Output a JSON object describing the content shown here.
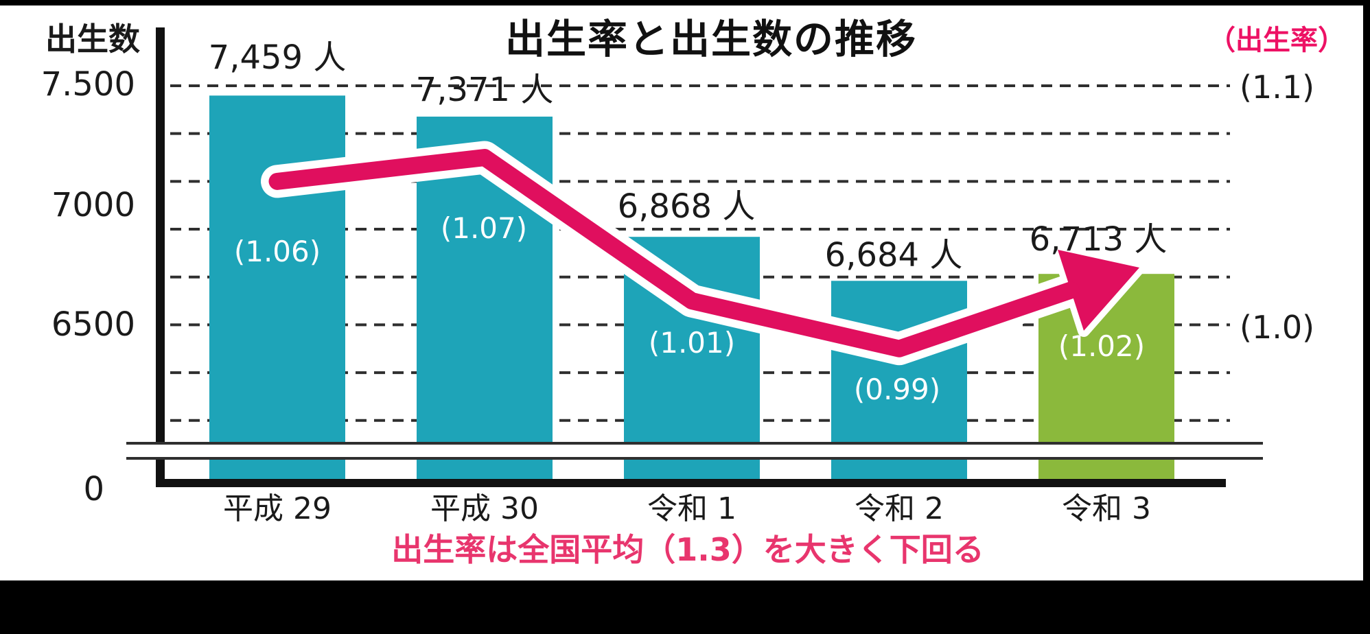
{
  "title": "出生率と出生数の推移",
  "note": "出生率は全国平均（1.3）を大きく下回る",
  "left_axis": {
    "label": "出生数",
    "ticks": [
      "7.500",
      "7000",
      "6500",
      "0"
    ]
  },
  "right_axis": {
    "label": "（出生率）",
    "ticks": [
      "(1.1)",
      "(1.0)"
    ]
  },
  "colors": {
    "bar_teal": "#1ea4b8",
    "bar_green": "#8bb93c",
    "arrow_pink": "#e00f5e",
    "arrow_outline": "#ffffff",
    "note_pink": "#e8356d",
    "rate_axis_pink": "#ed1164",
    "grid": "#2f2f2f",
    "axis": "#111111",
    "background": "#ffffff",
    "frame_black": "#000000"
  },
  "chart_data": {
    "type": "bar",
    "title": "出生率と出生数の推移",
    "categories": [
      "平成 29",
      "平成 30",
      "令和 1",
      "令和 2",
      "令和 3"
    ],
    "series": [
      {
        "name": "出生数",
        "type": "bar",
        "unit": "人",
        "values": [
          7459,
          7371,
          6868,
          6684,
          6713
        ],
        "labels": [
          "7,459 人",
          "7,371 人",
          "6,868 人",
          "6,684 人",
          "6,713 人"
        ]
      },
      {
        "name": "出生率",
        "type": "line-arrow",
        "values": [
          1.06,
          1.07,
          1.01,
          0.99,
          1.02
        ],
        "labels": [
          "(1.06)",
          "(1.07)",
          "(1.01)",
          "(0.99)",
          "(1.02)"
        ]
      }
    ],
    "left_axis_tick_values": [
      7500,
      7000,
      6500,
      0
    ],
    "left_ylim": [
      6100,
      7500
    ],
    "gridline_step": 200,
    "grid_on": true,
    "right_axis_tick_values": [
      1.1,
      1.0
    ],
    "right_tick_alignment": {
      "1.1": 7500,
      "1.0": 6500
    },
    "axis_break": true,
    "highlight_last_bar": true,
    "national_average_rate": 1.3
  }
}
